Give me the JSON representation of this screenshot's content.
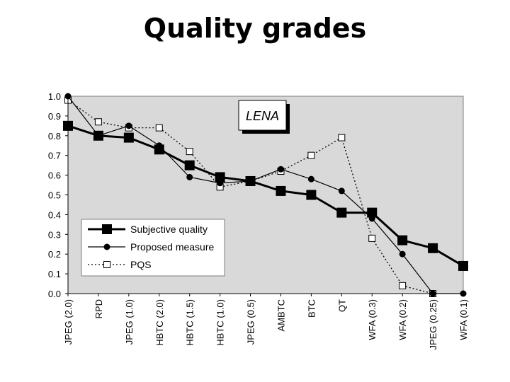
{
  "slide": {
    "title": "Quality grades"
  },
  "chart_data": {
    "type": "line",
    "annotation": "LENA",
    "categories": [
      "JPEG (2.0)",
      "RPD",
      "JPEG (1.0)",
      "HBTC (2.0)",
      "HBTC (1.5)",
      "HBTC (1.0)",
      "JPEG (0.5)",
      "AMBTC",
      "BTC",
      "QT",
      "WFA (0.3)",
      "WFA (0.2)",
      "JPEG (0.25)",
      "WFA (0.1)"
    ],
    "ylim": [
      0,
      1.0
    ],
    "yticks": [
      "0.0",
      "0.1",
      "0.2",
      "0.3",
      "0.4",
      "0.5",
      "0.6",
      "0.7",
      "0.8",
      "0.9",
      "1.0"
    ],
    "grid": false,
    "legend_position": "bottom-left",
    "series": [
      {
        "name": "Subjective quality",
        "marker": "filled-square",
        "line": "thick-solid",
        "values": [
          0.85,
          0.8,
          0.79,
          0.73,
          0.65,
          0.59,
          0.57,
          0.52,
          0.5,
          0.41,
          0.41,
          0.27,
          0.23,
          0.14
        ]
      },
      {
        "name": "Proposed measure",
        "marker": "filled-circle",
        "line": "thin-solid",
        "values": [
          1.0,
          0.8,
          0.85,
          0.75,
          0.59,
          0.56,
          0.57,
          0.63,
          0.58,
          0.52,
          0.38,
          0.2,
          0.0,
          0.0
        ]
      },
      {
        "name": "PQS",
        "marker": "open-square",
        "line": "dotted",
        "values": [
          0.98,
          0.87,
          0.84,
          0.84,
          0.72,
          0.54,
          0.57,
          0.62,
          0.7,
          0.79,
          0.28,
          0.04,
          0.0,
          null
        ]
      }
    ],
    "colors": {
      "plot_bg": "#d9d9d9",
      "line": "#000000",
      "open_marker_fill": "#ffffff"
    }
  }
}
